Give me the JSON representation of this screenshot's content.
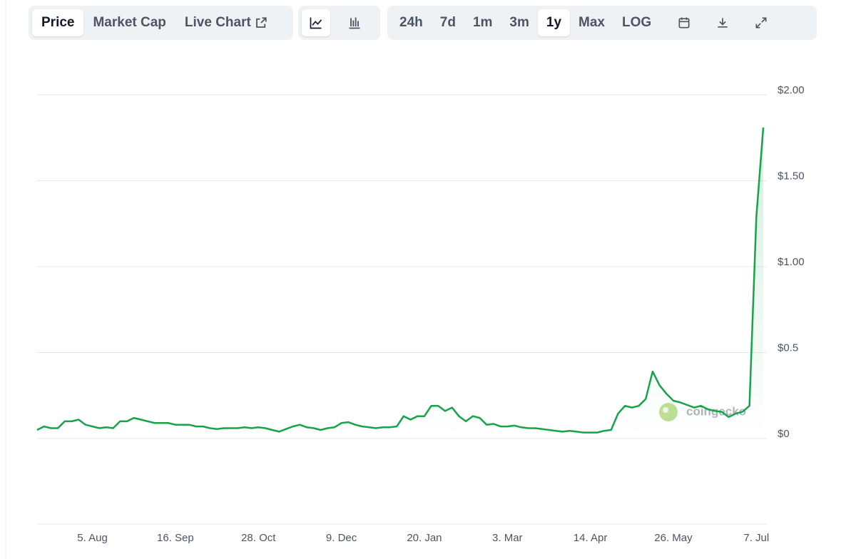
{
  "toolbar": {
    "tabs": [
      "Price",
      "Market Cap",
      "Live Chart"
    ],
    "ranges": [
      "24h",
      "7d",
      "1m",
      "3m",
      "1y",
      "Max",
      "LOG"
    ]
  },
  "watermark": "coingecko",
  "chart_data": {
    "type": "line",
    "color": "#16a34a",
    "categories": [
      null,
      null,
      null,
      null,
      null,
      null,
      null,
      null,
      "5. Aug",
      null,
      null,
      null,
      null,
      null,
      null,
      null,
      null,
      null,
      null,
      null,
      "16. Sep",
      null,
      null,
      null,
      null,
      null,
      null,
      null,
      null,
      null,
      null,
      null,
      "28. Oct",
      null,
      null,
      null,
      null,
      null,
      null,
      null,
      null,
      null,
      null,
      null,
      "9. Dec",
      null,
      null,
      null,
      null,
      null,
      null,
      null,
      null,
      null,
      null,
      null,
      "20. Jan",
      null,
      null,
      null,
      null,
      null,
      null,
      null,
      null,
      null,
      null,
      null,
      "3. Mar",
      null,
      null,
      null,
      null,
      null,
      null,
      null,
      null,
      null,
      null,
      null,
      "14. Apr",
      null,
      null,
      null,
      null,
      null,
      null,
      null,
      null,
      null,
      null,
      null,
      "26. May",
      null,
      null,
      null,
      null,
      null,
      null,
      null,
      null,
      null,
      null,
      null,
      "7. Jul",
      null
    ],
    "values": [
      0.05,
      0.07,
      0.06,
      0.06,
      0.1,
      0.1,
      0.11,
      0.08,
      0.07,
      0.06,
      0.065,
      0.06,
      0.1,
      0.1,
      0.12,
      0.11,
      0.1,
      0.09,
      0.09,
      0.09,
      0.08,
      0.08,
      0.08,
      0.07,
      0.07,
      0.06,
      0.055,
      0.06,
      0.06,
      0.06,
      0.065,
      0.06,
      0.065,
      0.06,
      0.05,
      0.04,
      0.055,
      0.07,
      0.08,
      0.065,
      0.06,
      0.05,
      0.06,
      0.065,
      0.09,
      0.095,
      0.08,
      0.07,
      0.065,
      0.06,
      0.065,
      0.065,
      0.07,
      0.13,
      0.11,
      0.13,
      0.13,
      0.19,
      0.19,
      0.16,
      0.18,
      0.13,
      0.1,
      0.13,
      0.12,
      0.08,
      0.085,
      0.07,
      0.07,
      0.075,
      0.065,
      0.06,
      0.06,
      0.055,
      0.05,
      0.045,
      0.04,
      0.045,
      0.04,
      0.035,
      0.035,
      0.035,
      0.045,
      0.05,
      0.145,
      0.19,
      0.18,
      0.19,
      0.23,
      0.39,
      0.31,
      0.26,
      0.22,
      0.21,
      0.195,
      0.18,
      0.19,
      0.17,
      0.16,
      0.155,
      0.125,
      0.145,
      0.155,
      0.19,
      1.29,
      1.81
    ],
    "ylim": [
      0,
      2
    ],
    "yticks": [
      {
        "value": 0,
        "label": "$0"
      },
      {
        "value": 0.5,
        "label": "$0.5"
      },
      {
        "value": 1,
        "label": "$1.00"
      },
      {
        "value": 1.5,
        "label": "$1.50"
      },
      {
        "value": 2,
        "label": "$2.00"
      }
    ],
    "grid": true
  }
}
